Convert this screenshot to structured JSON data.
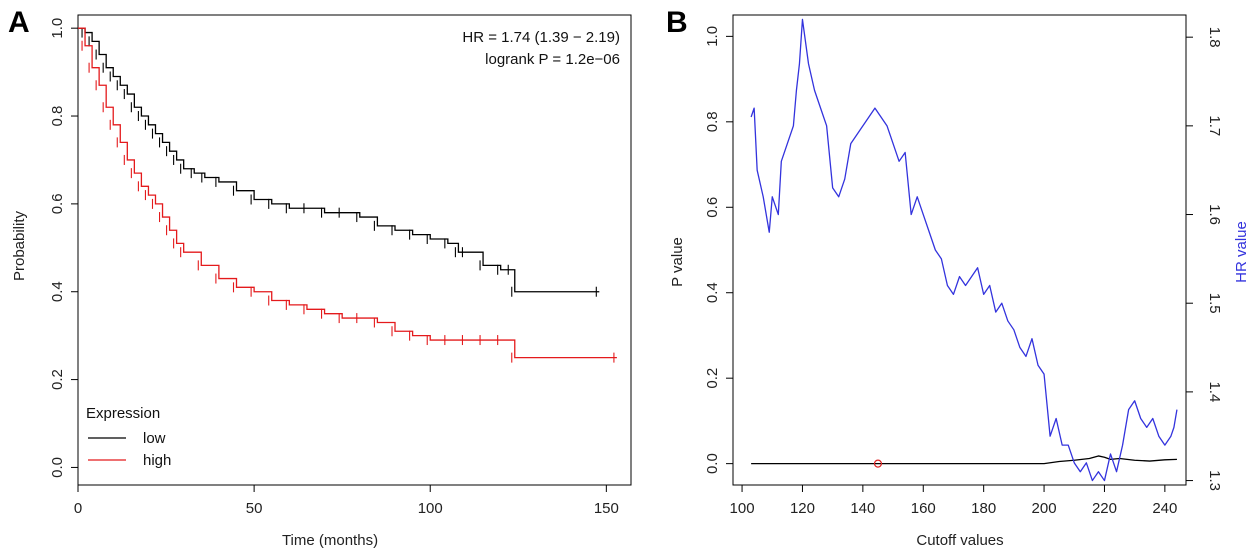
{
  "colors": {
    "low": "#000000",
    "high": "#e41a1c",
    "pvalue": "#000000",
    "hr": "#3333dd",
    "marker": "#dd2222"
  },
  "chart_data": [
    {
      "panel": "A",
      "type": "line",
      "subtype": "kaplan-meier",
      "xlabel": "Time (months)",
      "ylabel": "Probability",
      "xlim": [
        0,
        157
      ],
      "ylim": [
        -0.04,
        1.03
      ],
      "xticks": [
        0,
        50,
        100,
        150
      ],
      "yticks": [
        "0.0",
        "0.2",
        "0.4",
        "0.6",
        "0.8",
        "1.0"
      ],
      "annotations": [
        "HR = 1.74 (1.39 − 2.19)",
        "logrank P = 1.2e−06"
      ],
      "legend": {
        "title": "Expression",
        "placement": "bottom-left",
        "entries": [
          "low",
          "high"
        ]
      },
      "series": [
        {
          "name": "low",
          "color": "#000000",
          "x": [
            0,
            2,
            4,
            6,
            8,
            10,
            12,
            14,
            16,
            18,
            20,
            22,
            24,
            26,
            28,
            30,
            33,
            36,
            40,
            45,
            50,
            55,
            60,
            65,
            70,
            75,
            80,
            85,
            90,
            95,
            100,
            105,
            108,
            110,
            115,
            120,
            123,
            124,
            148
          ],
          "y": [
            1.0,
            0.99,
            0.97,
            0.94,
            0.91,
            0.89,
            0.87,
            0.85,
            0.82,
            0.8,
            0.78,
            0.76,
            0.74,
            0.72,
            0.7,
            0.68,
            0.67,
            0.66,
            0.65,
            0.63,
            0.61,
            0.6,
            0.59,
            0.59,
            0.58,
            0.58,
            0.57,
            0.55,
            0.54,
            0.53,
            0.52,
            0.51,
            0.49,
            0.49,
            0.46,
            0.45,
            0.45,
            0.4,
            0.4
          ]
        },
        {
          "name": "high",
          "color": "#e41a1c",
          "x": [
            0,
            2,
            4,
            6,
            8,
            10,
            12,
            14,
            16,
            18,
            20,
            22,
            24,
            26,
            28,
            30,
            35,
            40,
            45,
            50,
            55,
            60,
            65,
            70,
            75,
            80,
            85,
            90,
            95,
            100,
            105,
            110,
            115,
            120,
            124,
            153
          ],
          "y": [
            1.0,
            0.96,
            0.91,
            0.87,
            0.82,
            0.78,
            0.74,
            0.7,
            0.67,
            0.64,
            0.62,
            0.6,
            0.57,
            0.54,
            0.51,
            0.49,
            0.46,
            0.43,
            0.41,
            0.4,
            0.38,
            0.37,
            0.36,
            0.35,
            0.34,
            0.34,
            0.33,
            0.31,
            0.3,
            0.29,
            0.29,
            0.29,
            0.29,
            0.29,
            0.25,
            0.25
          ]
        }
      ]
    },
    {
      "panel": "B",
      "type": "line",
      "subtype": "dual-axis",
      "xlabel": "Cutoff values",
      "ylabel": "P value",
      "y2label": "HR value",
      "xlim": [
        97,
        247
      ],
      "ylim": [
        -0.05,
        1.05
      ],
      "y2lim": [
        1.295,
        1.825
      ],
      "xticks": [
        100,
        120,
        140,
        160,
        180,
        200,
        220,
        240
      ],
      "yticks": [
        "0.0",
        "0.2",
        "0.4",
        "0.6",
        "0.8",
        "1.0"
      ],
      "y2ticks": [
        "1.3",
        "1.4",
        "1.5",
        "1.6",
        "1.7",
        "1.8"
      ],
      "min_pvalue_marker": {
        "x": 145,
        "y": 0.0
      },
      "series": [
        {
          "name": "P value",
          "axis": "left",
          "color": "#000000",
          "x": [
            103,
            120,
            140,
            160,
            180,
            200,
            205,
            210,
            215,
            218,
            220,
            222,
            225,
            230,
            235,
            240,
            244
          ],
          "y": [
            0.0,
            0.0,
            0.0,
            0.0,
            0.0,
            0.0,
            0.005,
            0.008,
            0.012,
            0.018,
            0.015,
            0.01,
            0.012,
            0.008,
            0.006,
            0.009,
            0.01
          ]
        },
        {
          "name": "HR value",
          "axis": "right",
          "color": "#3333dd",
          "x": [
            103,
            104,
            105,
            107,
            109,
            110,
            112,
            113,
            115,
            117,
            118,
            119,
            120,
            122,
            124,
            126,
            128,
            130,
            132,
            134,
            136,
            138,
            140,
            142,
            144,
            146,
            148,
            150,
            152,
            154,
            156,
            158,
            160,
            162,
            164,
            166,
            168,
            170,
            172,
            174,
            176,
            178,
            180,
            182,
            184,
            186,
            188,
            190,
            192,
            194,
            196,
            198,
            200,
            202,
            204,
            206,
            208,
            210,
            212,
            214,
            216,
            218,
            220,
            222,
            224,
            226,
            228,
            230,
            232,
            234,
            236,
            238,
            240,
            242,
            243,
            244
          ],
          "y": [
            1.71,
            1.72,
            1.65,
            1.62,
            1.58,
            1.62,
            1.6,
            1.66,
            1.68,
            1.7,
            1.74,
            1.77,
            1.82,
            1.77,
            1.74,
            1.72,
            1.7,
            1.63,
            1.62,
            1.64,
            1.68,
            1.69,
            1.7,
            1.71,
            1.72,
            1.71,
            1.7,
            1.68,
            1.66,
            1.67,
            1.6,
            1.62,
            1.6,
            1.58,
            1.56,
            1.55,
            1.52,
            1.51,
            1.53,
            1.52,
            1.53,
            1.54,
            1.51,
            1.52,
            1.49,
            1.5,
            1.48,
            1.47,
            1.45,
            1.44,
            1.46,
            1.43,
            1.42,
            1.35,
            1.37,
            1.34,
            1.34,
            1.32,
            1.31,
            1.32,
            1.3,
            1.31,
            1.3,
            1.33,
            1.31,
            1.34,
            1.38,
            1.39,
            1.37,
            1.36,
            1.37,
            1.35,
            1.34,
            1.35,
            1.36,
            1.38
          ]
        }
      ]
    }
  ]
}
